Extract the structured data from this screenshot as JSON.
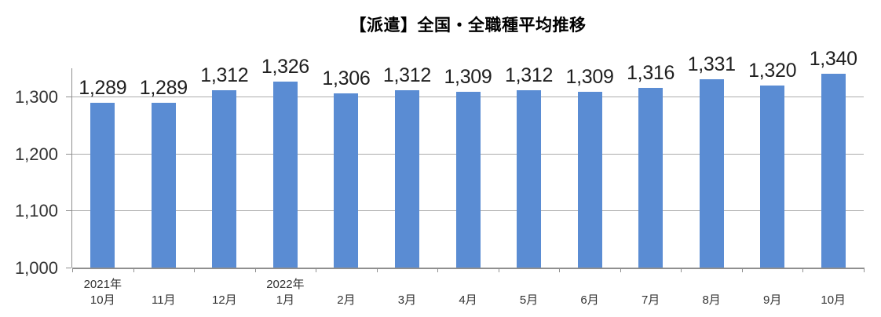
{
  "chart_data": {
    "type": "bar",
    "title": "【派遣】全国・全職種平均推移",
    "categories": [
      "10月",
      "11月",
      "12月",
      "1月",
      "2月",
      "3月",
      "4月",
      "5月",
      "6月",
      "7月",
      "8月",
      "9月",
      "10月"
    ],
    "year_markers": [
      {
        "index": 0,
        "label": "2021年"
      },
      {
        "index": 3,
        "label": "2022年"
      }
    ],
    "values": [
      1289,
      1289,
      1312,
      1326,
      1306,
      1312,
      1309,
      1312,
      1309,
      1316,
      1331,
      1320,
      1340
    ],
    "value_labels": [
      "1,289",
      "1,289",
      "1,312",
      "1,326",
      "1,306",
      "1,312",
      "1,309",
      "1,312",
      "1,309",
      "1,316",
      "1,331",
      "1,320",
      "1,340"
    ],
    "ylim": [
      1000,
      1350
    ],
    "yticks": [
      1000,
      1100,
      1200,
      1300
    ],
    "ytick_labels": [
      "1,000",
      "1,100",
      "1,200",
      "1,300"
    ],
    "grid": true,
    "legend_position": "none",
    "colors": {
      "bar": "#5A8CD3",
      "gridline": "#ACACAC",
      "axis": "#8F8F8F",
      "data_label": "#1F1F1F",
      "axis_label": "#333333",
      "title": "#000000"
    }
  }
}
